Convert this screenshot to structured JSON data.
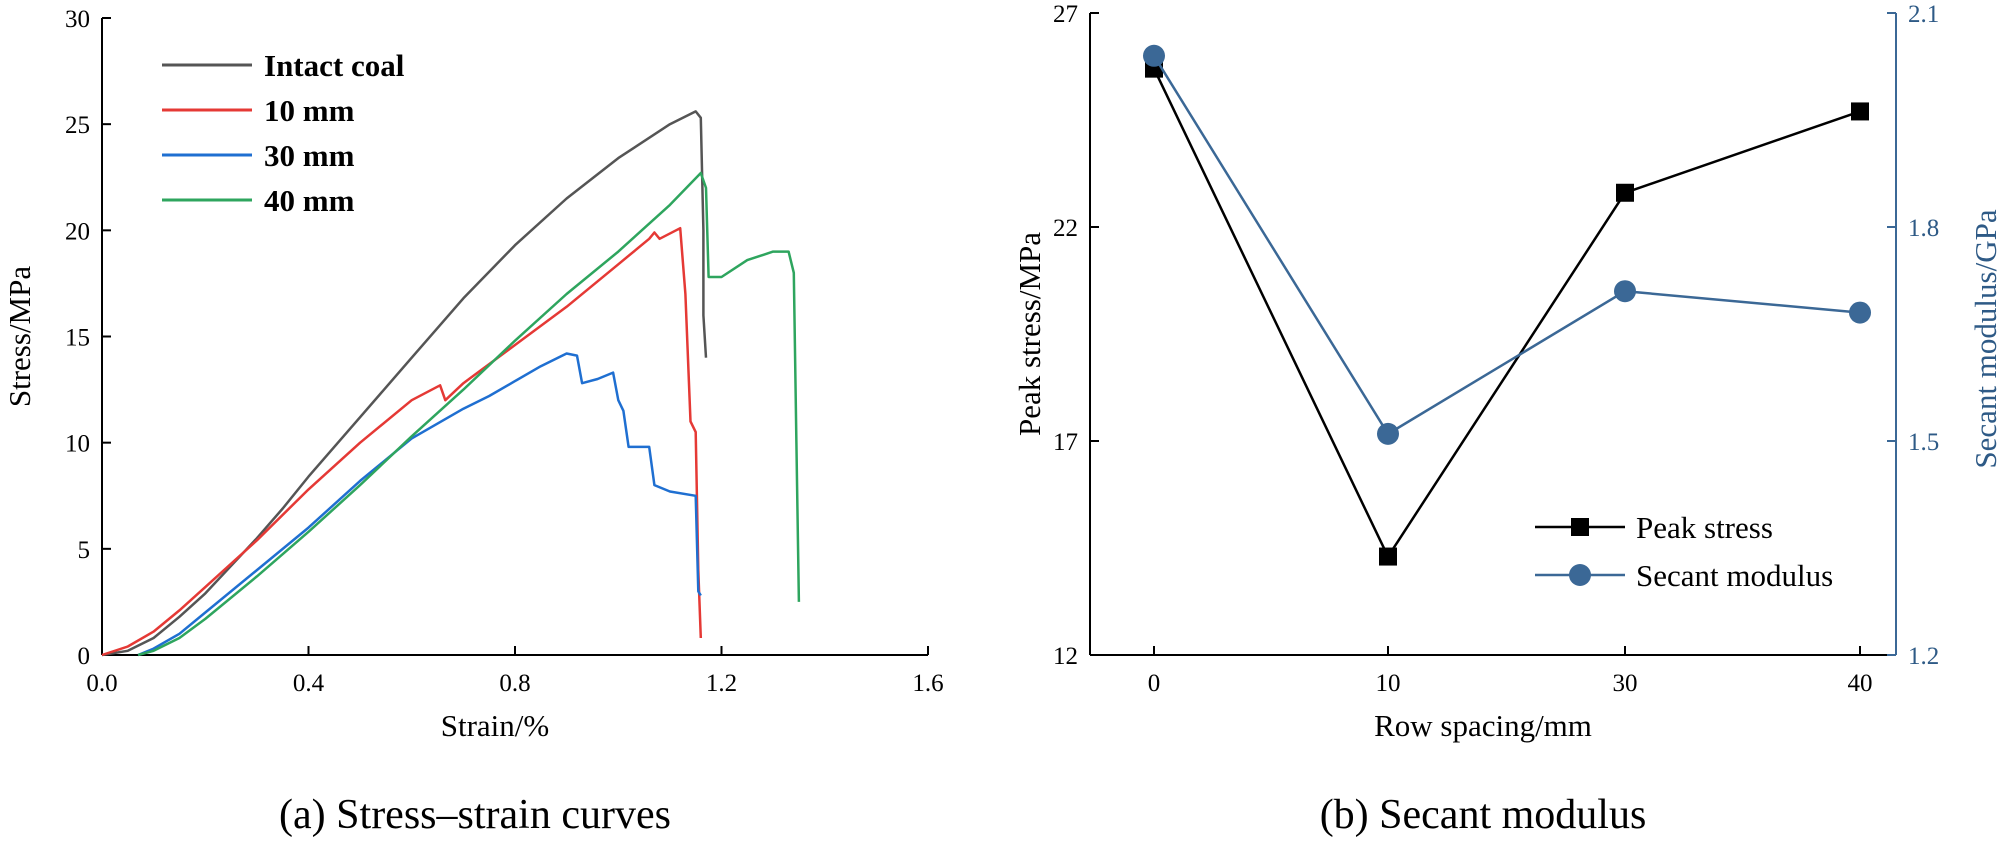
{
  "chart_data": [
    {
      "type": "line",
      "caption": "(a) Stress–strain curves",
      "xlabel": "Strain/%",
      "ylabel": "Stress/MPa",
      "xlim": [
        0,
        1.6
      ],
      "ylim": [
        0,
        30
      ],
      "xticks": [
        "0.0",
        "0.4",
        "0.8",
        "1.2",
        "1.6"
      ],
      "yticks": [
        "0",
        "5",
        "10",
        "15",
        "20",
        "25",
        "30"
      ],
      "legend_position": "top-left",
      "series": [
        {
          "name": "Intact coal",
          "color": "#555555",
          "points": [
            [
              0.0,
              0.0
            ],
            [
              0.05,
              0.2
            ],
            [
              0.1,
              0.8
            ],
            [
              0.15,
              1.8
            ],
            [
              0.2,
              2.9
            ],
            [
              0.25,
              4.2
            ],
            [
              0.3,
              5.5
            ],
            [
              0.35,
              6.9
            ],
            [
              0.4,
              8.4
            ],
            [
              0.5,
              11.2
            ],
            [
              0.6,
              14.0
            ],
            [
              0.7,
              16.8
            ],
            [
              0.8,
              19.3
            ],
            [
              0.9,
              21.5
            ],
            [
              1.0,
              23.4
            ],
            [
              1.1,
              25.0
            ],
            [
              1.15,
              25.6
            ],
            [
              1.16,
              25.3
            ],
            [
              1.165,
              20.0
            ],
            [
              1.165,
              16.0
            ],
            [
              1.17,
              14.0
            ]
          ]
        },
        {
          "name": "10 mm",
          "color": "#e53935",
          "points": [
            [
              0.0,
              0.0
            ],
            [
              0.05,
              0.4
            ],
            [
              0.1,
              1.1
            ],
            [
              0.15,
              2.1
            ],
            [
              0.2,
              3.2
            ],
            [
              0.3,
              5.4
            ],
            [
              0.4,
              7.8
            ],
            [
              0.5,
              10.0
            ],
            [
              0.6,
              12.0
            ],
            [
              0.655,
              12.7
            ],
            [
              0.665,
              12.0
            ],
            [
              0.7,
              12.8
            ],
            [
              0.8,
              14.6
            ],
            [
              0.9,
              16.4
            ],
            [
              1.0,
              18.4
            ],
            [
              1.06,
              19.6
            ],
            [
              1.07,
              19.9
            ],
            [
              1.08,
              19.6
            ],
            [
              1.12,
              20.1
            ],
            [
              1.13,
              17.0
            ],
            [
              1.14,
              11.0
            ],
            [
              1.15,
              10.5
            ],
            [
              1.155,
              4.0
            ],
            [
              1.16,
              0.8
            ]
          ]
        },
        {
          "name": "30 mm",
          "color": "#1f6fd1",
          "points": [
            [
              0.07,
              0.0
            ],
            [
              0.1,
              0.3
            ],
            [
              0.15,
              1.0
            ],
            [
              0.2,
              2.0
            ],
            [
              0.3,
              4.0
            ],
            [
              0.4,
              6.0
            ],
            [
              0.5,
              8.2
            ],
            [
              0.6,
              10.2
            ],
            [
              0.7,
              11.6
            ],
            [
              0.75,
              12.2
            ],
            [
              0.8,
              12.9
            ],
            [
              0.85,
              13.6
            ],
            [
              0.9,
              14.2
            ],
            [
              0.92,
              14.1
            ],
            [
              0.93,
              12.8
            ],
            [
              0.96,
              13.0
            ],
            [
              0.99,
              13.3
            ],
            [
              1.0,
              12.0
            ],
            [
              1.01,
              11.5
            ],
            [
              1.02,
              9.8
            ],
            [
              1.06,
              9.8
            ],
            [
              1.07,
              8.0
            ],
            [
              1.1,
              7.7
            ],
            [
              1.15,
              7.5
            ],
            [
              1.155,
              3.0
            ],
            [
              1.16,
              2.8
            ]
          ]
        },
        {
          "name": "40 mm",
          "color": "#2ea55e",
          "points": [
            [
              0.07,
              0.0
            ],
            [
              0.1,
              0.2
            ],
            [
              0.15,
              0.8
            ],
            [
              0.2,
              1.7
            ],
            [
              0.3,
              3.7
            ],
            [
              0.4,
              5.8
            ],
            [
              0.5,
              8.0
            ],
            [
              0.6,
              10.3
            ],
            [
              0.7,
              12.5
            ],
            [
              0.8,
              14.8
            ],
            [
              0.9,
              17.0
            ],
            [
              1.0,
              19.0
            ],
            [
              1.1,
              21.2
            ],
            [
              1.16,
              22.7
            ],
            [
              1.17,
              22.0
            ],
            [
              1.175,
              17.8
            ],
            [
              1.2,
              17.8
            ],
            [
              1.25,
              18.6
            ],
            [
              1.3,
              19.0
            ],
            [
              1.33,
              19.0
            ],
            [
              1.34,
              18.0
            ],
            [
              1.345,
              10.0
            ],
            [
              1.35,
              2.5
            ]
          ]
        }
      ]
    },
    {
      "type": "line",
      "caption": "(b) Secant modulus",
      "xlabel": "Row spacing/mm",
      "ylabel": "Peak stress/MPa",
      "y2label": "Secant modulus/GPa",
      "categories": [
        "0",
        "10",
        "30",
        "40"
      ],
      "ylim": [
        12,
        27
      ],
      "y2lim": [
        1.2,
        2.1
      ],
      "yticks": [
        "12",
        "17",
        "22",
        "27"
      ],
      "y2ticks": [
        "1.2",
        "1.5",
        "1.8",
        "2.1"
      ],
      "legend_position": "bottom-right",
      "series": [
        {
          "name": "Peak stress",
          "axis": "left",
          "marker": "square",
          "color": "#000000",
          "values": [
            25.7,
            14.3,
            22.8,
            24.7
          ]
        },
        {
          "name": "Secant modulus",
          "axis": "right",
          "marker": "circle",
          "color": "#3b6896",
          "values": [
            2.04,
            1.51,
            1.71,
            1.68
          ]
        }
      ]
    }
  ]
}
